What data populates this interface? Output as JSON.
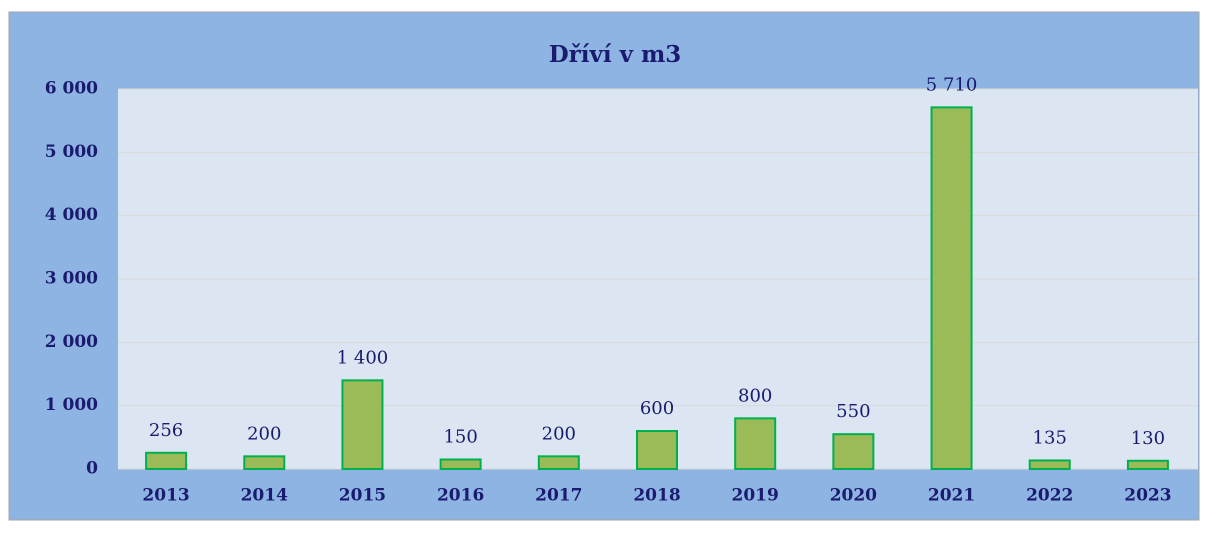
{
  "chart_data": {
    "type": "bar",
    "title": "Dříví v m3",
    "categories": [
      "2013",
      "2014",
      "2015",
      "2016",
      "2017",
      "2018",
      "2019",
      "2020",
      "2021",
      "2022",
      "2023"
    ],
    "values": [
      256,
      200,
      1400,
      150,
      200,
      600,
      800,
      550,
      5710,
      135,
      130
    ],
    "value_labels": [
      "256",
      "200",
      "1 400",
      "150",
      "200",
      "600",
      "800",
      "550",
      "5 710",
      "135",
      "130"
    ],
    "color": "#9bbb59",
    "edge_color": "#00b050",
    "ylim": [
      0,
      6000
    ],
    "yticks": [
      0,
      {
        "value": 1000,
        "label": "1 000"
      },
      {
        "value": 2000,
        "label": "2 000"
      },
      {
        "value": 3000,
        "label": "3 000"
      },
      {
        "value": 4000,
        "label": "4 000"
      },
      {
        "value": 5000,
        "label": "5 000"
      },
      {
        "value": 6000,
        "label": "6 000"
      }
    ],
    "grid": true
  }
}
